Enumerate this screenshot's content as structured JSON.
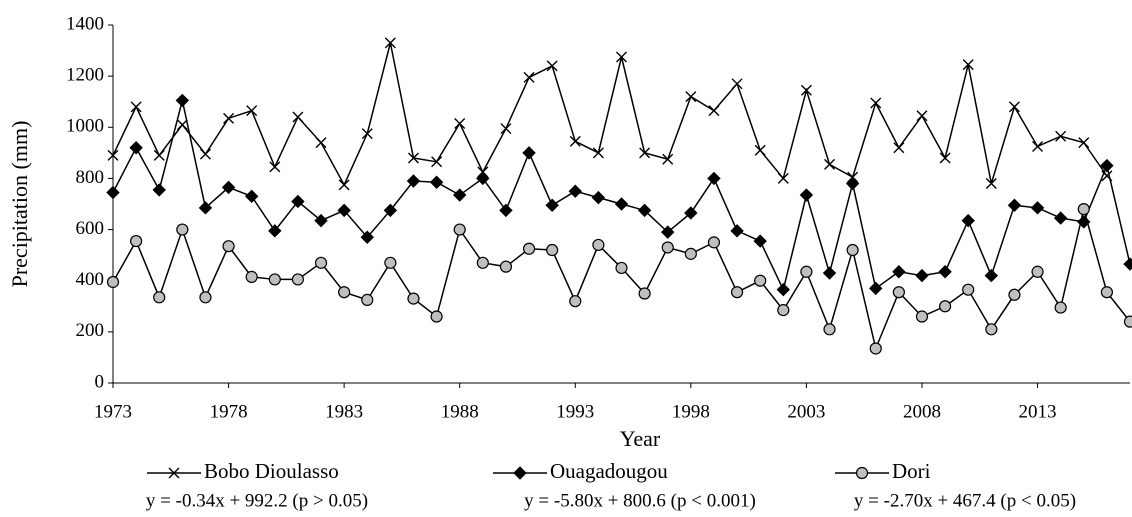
{
  "chart_data": {
    "type": "line",
    "x_label": "Year",
    "y_label": "Precipitation (mm)",
    "x": [
      1973,
      1974,
      1975,
      1976,
      1977,
      1978,
      1979,
      1980,
      1981,
      1982,
      1983,
      1984,
      1985,
      1986,
      1987,
      1988,
      1989,
      1990,
      1991,
      1992,
      1993,
      1994,
      1995,
      1996,
      1997,
      1998,
      1999,
      2000,
      2001,
      2002,
      2003,
      2004,
      2005,
      2006,
      2007,
      2008,
      2009,
      2010,
      2011,
      2012,
      2013,
      2014,
      2015,
      2016,
      2017
    ],
    "xlim": [
      1973,
      2017
    ],
    "xticks": [
      1973,
      1978,
      1983,
      1988,
      1993,
      1998,
      2003,
      2008,
      2013
    ],
    "ylim": [
      0,
      1400
    ],
    "yticks": [
      0,
      200,
      400,
      600,
      800,
      1000,
      1200,
      1400
    ],
    "series": [
      {
        "name": "Bobo Dioulasso",
        "trend": "y = -0.34x + 992.2 (p > 0.05)",
        "color": "#000000",
        "marker": "x",
        "values": [
          890,
          1080,
          890,
          1010,
          895,
          1035,
          1065,
          845,
          1040,
          940,
          775,
          975,
          1330,
          880,
          865,
          1015,
          825,
          995,
          1195,
          1240,
          945,
          900,
          1275,
          900,
          875,
          1120,
          1065,
          1170,
          910,
          800,
          1145,
          855,
          805,
          1095,
          920,
          1045,
          880,
          1245,
          780,
          1080,
          925,
          965,
          940,
          810,
          null
        ]
      },
      {
        "name": "Ouagadougou",
        "trend": "y = -5.80x + 800.6 (p < 0.001)",
        "color": "#000000",
        "marker": "diamond",
        "values": [
          745,
          920,
          755,
          1105,
          685,
          765,
          730,
          595,
          710,
          635,
          675,
          570,
          675,
          790,
          785,
          735,
          800,
          675,
          900,
          695,
          750,
          725,
          700,
          675,
          590,
          665,
          800,
          595,
          555,
          365,
          735,
          430,
          780,
          370,
          435,
          420,
          435,
          635,
          420,
          695,
          685,
          645,
          630,
          850,
          465
        ]
      },
      {
        "name": "Dori",
        "trend": "y = -2.70x + 467.4 (p < 0.05)",
        "color": "#bfbfbf",
        "marker": "circle",
        "values": [
          395,
          555,
          335,
          600,
          335,
          535,
          415,
          405,
          405,
          470,
          355,
          325,
          470,
          330,
          260,
          600,
          470,
          455,
          525,
          520,
          320,
          540,
          450,
          350,
          530,
          505,
          550,
          355,
          400,
          285,
          435,
          210,
          520,
          135,
          355,
          260,
          300,
          365,
          210,
          345,
          435,
          295,
          680,
          355,
          240
        ]
      }
    ]
  }
}
